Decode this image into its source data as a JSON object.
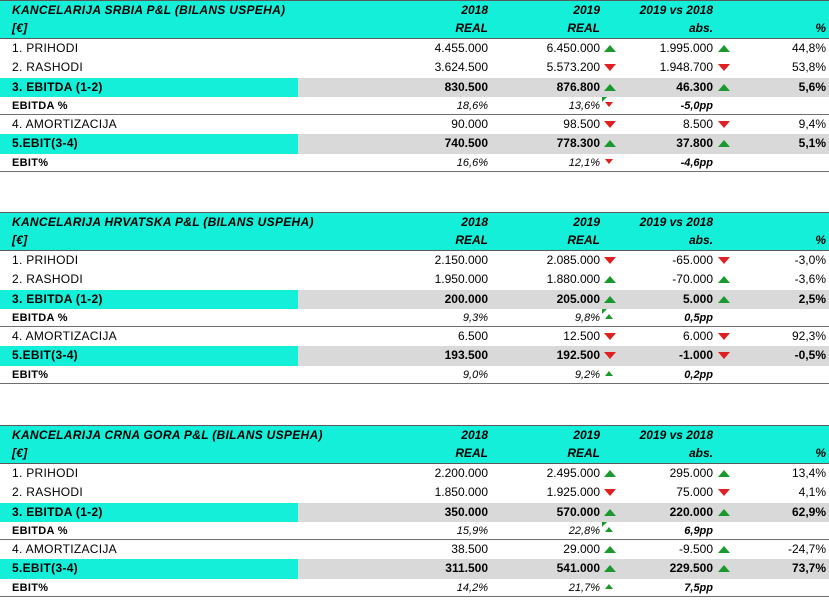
{
  "sections": [
    {
      "title": "KANCELARIJA SRBIA P&L (BILANS USPEHA)",
      "header_year1": "2018",
      "header_year2": "2019",
      "header_vs": "2019 vs 2018",
      "unit": "[€]",
      "sub1": "REAL",
      "sub2": "REAL",
      "sub_abs": "abs.",
      "sub_pct": "%",
      "rows": {
        "prihodi": {
          "label": "1. PRIHODI",
          "v2018": "4.455.000",
          "v2019": "6.450.000",
          "abs": "1.995.000",
          "pct": "44,8%",
          "a2019": "up",
          "aabs": "up"
        },
        "rashodi": {
          "label": "2. RASHODI",
          "v2018": "3.624.500",
          "v2019": "5.573.200",
          "abs": "1.948.700",
          "pct": "53,8%",
          "a2019": "down",
          "aabs": "down"
        },
        "ebitda": {
          "label": "3. EBITDA (1-2)",
          "v2018": "830.500",
          "v2019": "876.800",
          "abs": "46.300",
          "pct": "5,6%",
          "a2019": "up",
          "aabs": "up"
        },
        "ebitda_pct": {
          "label": "EBITDA %",
          "v2018": "18,6%",
          "v2019": "13,6%",
          "abs": "-5,0pp",
          "a2019": "down"
        },
        "amort": {
          "label": "4. AMORTIZACIJA",
          "v2018": "90.000",
          "v2019": "98.500",
          "abs": "8.500",
          "pct": "9,4%",
          "a2019": "down",
          "aabs": "down"
        },
        "ebit": {
          "label": "5.EBIT(3-4)",
          "v2018": "740.500",
          "v2019": "778.300",
          "abs": "37.800",
          "pct": "5,1%",
          "a2019": "up",
          "aabs": "up"
        },
        "ebit_pct": {
          "label": "EBIT%",
          "v2018": "16,6%",
          "v2019": "12,1%",
          "abs": "-4,6pp",
          "a2019": "down"
        }
      }
    },
    {
      "title": "KANCELARIJA HRVATSKA P&L (BILANS USPEHA)",
      "header_year1": "2018",
      "header_year2": "2019",
      "header_vs": "2019 vs 2018",
      "unit": "[€]",
      "sub1": "REAL",
      "sub2": "REAL",
      "sub_abs": "abs.",
      "sub_pct": "%",
      "rows": {
        "prihodi": {
          "label": "1. PRIHODI",
          "v2018": "2.150.000",
          "v2019": "2.085.000",
          "abs": "-65.000",
          "pct": "-3,0%",
          "a2019": "down",
          "aabs": "down"
        },
        "rashodi": {
          "label": "2. RASHODI",
          "v2018": "1.950.000",
          "v2019": "1.880.000",
          "abs": "-70.000",
          "pct": "-3,6%",
          "a2019": "up",
          "aabs": "up"
        },
        "ebitda": {
          "label": "3. EBITDA (1-2)",
          "v2018": "200.000",
          "v2019": "205.000",
          "abs": "5.000",
          "pct": "2,5%",
          "a2019": "up",
          "aabs": "up"
        },
        "ebitda_pct": {
          "label": "EBITDA %",
          "v2018": "9,3%",
          "v2019": "9,8%",
          "abs": "0,5pp",
          "a2019": "up"
        },
        "amort": {
          "label": "4. AMORTIZACIJA",
          "v2018": "6.500",
          "v2019": "12.500",
          "abs": "6.000",
          "pct": "92,3%",
          "a2019": "down",
          "aabs": "down"
        },
        "ebit": {
          "label": "5.EBIT(3-4)",
          "v2018": "193.500",
          "v2019": "192.500",
          "abs": "-1.000",
          "pct": "-0,5%",
          "a2019": "down",
          "aabs": "down"
        },
        "ebit_pct": {
          "label": "EBIT%",
          "v2018": "9,0%",
          "v2019": "9,2%",
          "abs": "0,2pp",
          "a2019": "up"
        }
      }
    },
    {
      "title": "KANCELARIJA CRNA GORA P&L (BILANS USPEHA)",
      "header_year1": "2018",
      "header_year2": "2019",
      "header_vs": "2019 vs 2018",
      "unit": "[€]",
      "sub1": "REAL",
      "sub2": "REAL",
      "sub_abs": "abs.",
      "sub_pct": "%",
      "rows": {
        "prihodi": {
          "label": "1. PRIHODI",
          "v2018": "2.200.000",
          "v2019": "2.495.000",
          "abs": "295.000",
          "pct": "13,4%",
          "a2019": "up",
          "aabs": "up"
        },
        "rashodi": {
          "label": "2. RASHODI",
          "v2018": "1.850.000",
          "v2019": "1.925.000",
          "abs": "75.000",
          "pct": "4,1%",
          "a2019": "down",
          "aabs": "down"
        },
        "ebitda": {
          "label": "3. EBITDA (1-2)",
          "v2018": "350.000",
          "v2019": "570.000",
          "abs": "220.000",
          "pct": "62,9%",
          "a2019": "up",
          "aabs": "up"
        },
        "ebitda_pct": {
          "label": "EBITDA %",
          "v2018": "15,9%",
          "v2019": "22,8%",
          "abs": "6,9pp",
          "a2019": "up"
        },
        "amort": {
          "label": "4. AMORTIZACIJA",
          "v2018": "38.500",
          "v2019": "29.000",
          "abs": "-9.500",
          "pct": "-24,7%",
          "a2019": "up",
          "aabs": "up"
        },
        "ebit": {
          "label": "5.EBIT(3-4)",
          "v2018": "311.500",
          "v2019": "541.000",
          "abs": "229.500",
          "pct": "73,7%",
          "a2019": "up",
          "aabs": "up"
        },
        "ebit_pct": {
          "label": "EBIT%",
          "v2018": "14,2%",
          "v2019": "21,7%",
          "abs": "7,5pp",
          "a2019": "up"
        }
      }
    }
  ],
  "colors": {
    "header": "#14efd9",
    "highlight": "#d9d9d9",
    "up": "#1a9a2e",
    "down": "#e02020"
  }
}
